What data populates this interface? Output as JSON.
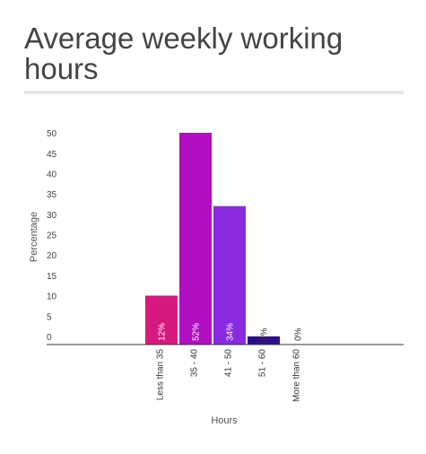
{
  "title": "Average weekly working hours",
  "chart_data": {
    "type": "bar",
    "title": "Average weekly working hours",
    "xlabel": "Hours",
    "ylabel": "Percentage",
    "categories": [
      "Less than 35",
      "35 - 40",
      "41 - 50",
      "51 - 60",
      "More than 60"
    ],
    "values": [
      12,
      52,
      34,
      2,
      0
    ],
    "data_labels": [
      "12%",
      "52%",
      "34%",
      "2%",
      "0%"
    ],
    "colors": [
      "#d6197f",
      "#b00ec0",
      "#8a2be2",
      "#2e0d8a",
      "#cccccc"
    ],
    "yticks": [
      0,
      5,
      10,
      15,
      20,
      25,
      30,
      35,
      40,
      45,
      50
    ],
    "ylim": [
      0,
      52
    ],
    "grid": false,
    "legend": "none"
  }
}
